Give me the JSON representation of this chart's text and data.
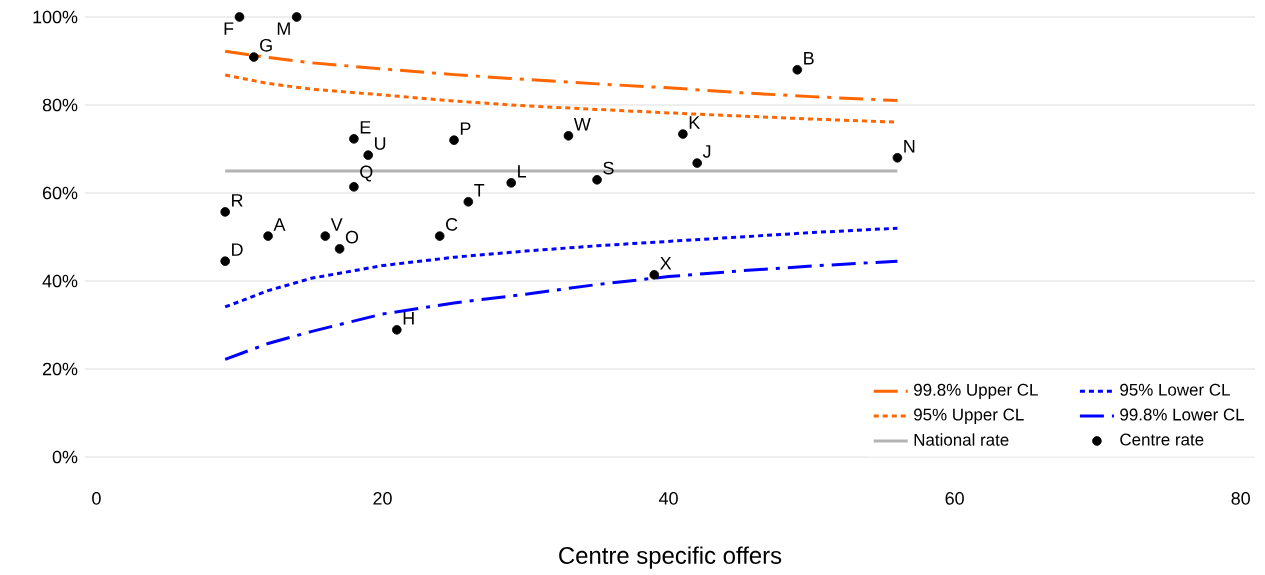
{
  "chart_data": {
    "type": "line",
    "xlabel": "Centre specific offers",
    "xlim": [
      -0.8,
      81
    ],
    "ylim": [
      0,
      100
    ],
    "xticks": [
      0,
      20,
      40,
      60,
      80
    ],
    "yticks": [
      {
        "value": 0,
        "label": "0%"
      },
      {
        "value": 20,
        "label": "20%"
      },
      {
        "value": 40,
        "label": "40%"
      },
      {
        "value": 60,
        "label": "60%"
      },
      {
        "value": 80,
        "label": "80%"
      },
      {
        "value": 100,
        "label": "100%"
      }
    ],
    "grid": "y",
    "legend": "bottom right",
    "series": [
      {
        "name": "99.8% Upper CL",
        "color": "#ff6600",
        "line_style": "dashed",
        "x": [
          9,
          12,
          15,
          20,
          25,
          30,
          35,
          40,
          45,
          50,
          56
        ],
        "values": [
          92.2,
          90.8,
          89.6,
          88.2,
          86.9,
          85.8,
          84.8,
          83.9,
          82.8,
          81.9,
          81.0
        ]
      },
      {
        "name": "95% Lower CL",
        "color": "#0000ff",
        "line_style": "dotted",
        "x": [
          9,
          12,
          15,
          20,
          25,
          30,
          35,
          40,
          45,
          50,
          56
        ],
        "values": [
          34.1,
          37.8,
          40.6,
          43.5,
          45.4,
          46.8,
          48.0,
          49.0,
          50.0,
          51.0,
          52.0
        ]
      },
      {
        "name": "95% Upper CL",
        "color": "#ff6600",
        "line_style": "dotted",
        "x": [
          9,
          12,
          15,
          20,
          25,
          30,
          35,
          40,
          45,
          50,
          56
        ],
        "values": [
          86.8,
          84.9,
          83.6,
          82.3,
          80.9,
          79.8,
          79.0,
          78.2,
          77.5,
          76.8,
          76.1
        ]
      },
      {
        "name": "99.8% Lower CL",
        "color": "#0000ff",
        "line_style": "dashed",
        "x": [
          9,
          12,
          15,
          20,
          25,
          30,
          35,
          40,
          45,
          50,
          56
        ],
        "values": [
          22.2,
          25.8,
          28.5,
          32.5,
          35.0,
          37.0,
          39.2,
          41.0,
          42.3,
          43.4,
          44.5
        ]
      },
      {
        "name": "National rate",
        "color": "#b3b3b3",
        "line_style": "solid",
        "x": [
          9,
          56
        ],
        "values": [
          65,
          65
        ]
      },
      {
        "name": "Centre rate",
        "type": "scatter",
        "color": "#000000",
        "marker": "circle",
        "x": [
          10,
          14,
          11,
          49,
          18,
          25,
          33,
          41,
          19,
          56,
          42,
          18,
          29,
          35,
          26,
          9,
          12,
          16,
          17,
          24,
          9,
          39,
          21
        ],
        "values": [
          100,
          100,
          90.9,
          88,
          72.3,
          72,
          73,
          73.4,
          68.6,
          68,
          66.8,
          61.4,
          62.3,
          63,
          58,
          55.7,
          50.2,
          50.2,
          47.3,
          50.2,
          44.5,
          41.4,
          28.9
        ]
      }
    ],
    "annotations": [
      {
        "text": "F",
        "x": 10,
        "y": 100
      },
      {
        "text": "M",
        "x": 14,
        "y": 100
      },
      {
        "text": "G",
        "x": 11,
        "y": 90.9
      },
      {
        "text": "B",
        "x": 49,
        "y": 88
      },
      {
        "text": "E",
        "x": 18,
        "y": 72.3
      },
      {
        "text": "P",
        "x": 25,
        "y": 72
      },
      {
        "text": "W",
        "x": 33,
        "y": 73
      },
      {
        "text": "K",
        "x": 41,
        "y": 73.4
      },
      {
        "text": "U",
        "x": 19,
        "y": 68.6
      },
      {
        "text": "N",
        "x": 56,
        "y": 68
      },
      {
        "text": "J",
        "x": 42,
        "y": 66.8
      },
      {
        "text": "Q",
        "x": 18,
        "y": 61.4
      },
      {
        "text": "L",
        "x": 29,
        "y": 62.3
      },
      {
        "text": "S",
        "x": 35,
        "y": 63
      },
      {
        "text": "T",
        "x": 26,
        "y": 58
      },
      {
        "text": "R",
        "x": 9,
        "y": 55.7
      },
      {
        "text": "A",
        "x": 12,
        "y": 50.2
      },
      {
        "text": "V",
        "x": 16,
        "y": 50.2
      },
      {
        "text": "O",
        "x": 17,
        "y": 47.3
      },
      {
        "text": "C",
        "x": 24,
        "y": 50.2
      },
      {
        "text": "D",
        "x": 9,
        "y": 44.5
      },
      {
        "text": "X",
        "x": 39,
        "y": 41.4
      },
      {
        "text": "H",
        "x": 21,
        "y": 28.9
      }
    ]
  }
}
